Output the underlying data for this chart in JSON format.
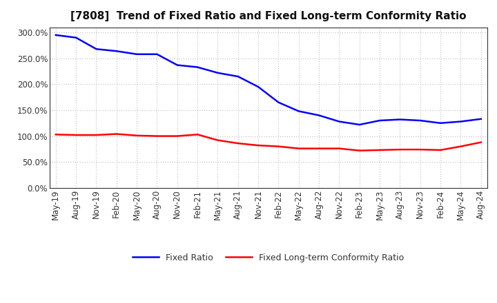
{
  "title": "[7808]  Trend of Fixed Ratio and Fixed Long-term Conformity Ratio",
  "x_labels": [
    "May-19",
    "Aug-19",
    "Nov-19",
    "Feb-20",
    "May-20",
    "Aug-20",
    "Nov-20",
    "Feb-21",
    "May-21",
    "Aug-21",
    "Nov-21",
    "Feb-22",
    "May-22",
    "Aug-22",
    "Nov-22",
    "Feb-23",
    "May-23",
    "Aug-23",
    "Nov-23",
    "Feb-24",
    "May-24",
    "Aug-24"
  ],
  "fixed_ratio": [
    295,
    290,
    268,
    264,
    258,
    258,
    237,
    233,
    222,
    215,
    195,
    165,
    148,
    140,
    128,
    122,
    130,
    132,
    130,
    125,
    128,
    133
  ],
  "fixed_lt_ratio": [
    103,
    102,
    102,
    104,
    101,
    100,
    100,
    103,
    92,
    86,
    82,
    80,
    76,
    76,
    76,
    72,
    73,
    74,
    74,
    73,
    80,
    88
  ],
  "ylim": [
    0,
    310
  ],
  "yticks": [
    0,
    50,
    100,
    150,
    200,
    250,
    300
  ],
  "blue_color": "#0000FF",
  "red_color": "#FF0000",
  "bg_color": "#FFFFFF",
  "plot_bg_color": "#FFFFFF",
  "grid_color": "#BBBBBB",
  "legend_fixed_ratio": "Fixed Ratio",
  "legend_fixed_lt_ratio": "Fixed Long-term Conformity Ratio",
  "title_fontsize": 11,
  "tick_fontsize": 8.5,
  "legend_fontsize": 9
}
